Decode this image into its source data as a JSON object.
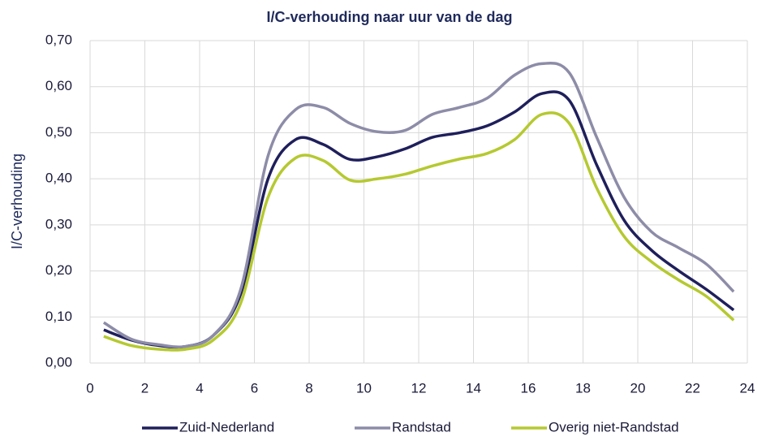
{
  "chart_data": {
    "type": "line",
    "title": "I/C-verhouding naar uur van de dag",
    "ylabel": "I/C-verhouding",
    "x": [
      0.5,
      1.5,
      2.5,
      3.5,
      4.5,
      5.5,
      6.5,
      7.5,
      8.5,
      9.5,
      10.5,
      11.5,
      12.5,
      13.5,
      14.5,
      15.5,
      16.5,
      17.5,
      18.5,
      19.5,
      20.5,
      21.5,
      22.5,
      23.5
    ],
    "series": [
      {
        "name": "Zuid-Nederland",
        "color": "#1f1f5c",
        "values": [
          0.072,
          0.05,
          0.038,
          0.036,
          0.06,
          0.15,
          0.4,
          0.485,
          0.475,
          0.442,
          0.448,
          0.465,
          0.49,
          0.5,
          0.515,
          0.545,
          0.585,
          0.57,
          0.43,
          0.31,
          0.245,
          0.2,
          0.16,
          0.115
        ]
      },
      {
        "name": "Randstad",
        "color": "#8d8ca8",
        "values": [
          0.088,
          0.052,
          0.04,
          0.036,
          0.06,
          0.16,
          0.45,
          0.55,
          0.555,
          0.52,
          0.502,
          0.505,
          0.54,
          0.555,
          0.575,
          0.625,
          0.65,
          0.63,
          0.49,
          0.36,
          0.285,
          0.25,
          0.215,
          0.155
        ]
      },
      {
        "name": "Overig niet-Randstad",
        "color": "#b5c930",
        "values": [
          0.058,
          0.038,
          0.03,
          0.03,
          0.05,
          0.13,
          0.36,
          0.445,
          0.44,
          0.397,
          0.4,
          0.41,
          0.428,
          0.443,
          0.455,
          0.485,
          0.54,
          0.52,
          0.38,
          0.275,
          0.22,
          0.18,
          0.145,
          0.093
        ]
      }
    ],
    "xlim": [
      0,
      24
    ],
    "xticks": [
      0,
      2,
      4,
      6,
      8,
      10,
      12,
      14,
      16,
      18,
      20,
      22,
      24
    ],
    "ylim": [
      0,
      0.7
    ],
    "yticks": [
      {
        "value": 0,
        "label": "0,00"
      },
      {
        "value": 0.1,
        "label": "0,10"
      },
      {
        "value": 0.2,
        "label": "0,20"
      },
      {
        "value": 0.3,
        "label": "0,30"
      },
      {
        "value": 0.4,
        "label": "0,40"
      },
      {
        "value": 0.5,
        "label": "0,50"
      },
      {
        "value": 0.6,
        "label": "0,60"
      },
      {
        "value": 0.7,
        "label": "0,70"
      }
    ],
    "grid": true,
    "legend": "bottom"
  }
}
